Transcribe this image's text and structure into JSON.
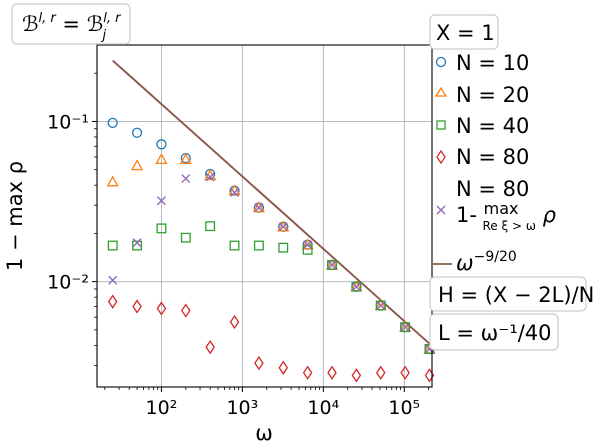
{
  "chart_data": {
    "type": "scatter",
    "title": "",
    "xlabel": "ω",
    "ylabel": "1 − max ρ",
    "xscale": "log",
    "yscale": "log",
    "xlim": [
      16,
      220000
    ],
    "ylim": [
      0.0022,
      0.3
    ],
    "grid": true,
    "x": [
      25,
      50,
      100,
      200,
      400,
      800,
      1600,
      3200,
      6400,
      12800,
      25600,
      51200,
      102400,
      204800
    ],
    "x_tick_labels": [
      "10²",
      "10³",
      "10⁴",
      "10⁵"
    ],
    "y_tick_labels": [
      "10⁻²",
      "10⁻¹"
    ],
    "series": [
      {
        "name": "N = 10",
        "marker": "circle",
        "color": "#1f77b4",
        "values": [
          0.098,
          0.085,
          0.072,
          0.059,
          0.047,
          0.037,
          0.029,
          0.022,
          0.017,
          0.0127,
          0.0093,
          0.0071,
          0.0052,
          0.0038
        ]
      },
      {
        "name": "N = 20",
        "marker": "triangle",
        "color": "#ff7f0e",
        "values": [
          0.042,
          0.053,
          0.058,
          0.058,
          0.046,
          0.037,
          0.029,
          0.022,
          0.017,
          0.0127,
          0.0093,
          0.0071,
          0.0052,
          0.0038
        ]
      },
      {
        "name": "N = 40",
        "marker": "square",
        "color": "#2ca02c",
        "values": [
          0.0168,
          0.0168,
          0.0215,
          0.0188,
          0.0222,
          0.0168,
          0.0168,
          0.0163,
          0.0158,
          0.0127,
          0.0093,
          0.0071,
          0.0052,
          0.0038
        ]
      },
      {
        "name": "N = 80",
        "marker": "diamond",
        "color": "#d62728",
        "values": [
          0.0075,
          0.007,
          0.0068,
          0.0066,
          0.0039,
          0.0056,
          0.0031,
          0.0029,
          0.0027,
          0.0027,
          0.0026,
          0.0027,
          0.0027,
          0.0026
        ]
      },
      {
        "name": "N = 80 1- max_{Re ξ > ω} ρ",
        "marker": "x",
        "color": "#9467bd",
        "values": [
          0.0102,
          0.0175,
          0.032,
          0.044,
          0.045,
          0.036,
          0.029,
          0.022,
          0.017,
          0.0127,
          0.0093,
          0.0071,
          0.0052,
          0.0038
        ]
      }
    ],
    "line": {
      "name": "ω^{-9/20}",
      "color": "#8c564b",
      "x": [
        25,
        204800
      ],
      "y": [
        0.24,
        0.0041
      ]
    }
  },
  "annotations": {
    "top_label": "ℬ^{l,r} = ℬ_j^{l,r}",
    "legend_title": "X = 1",
    "h_label": "H = (X − 2L)/N",
    "l_label": "L = ω⁻¹/40"
  }
}
